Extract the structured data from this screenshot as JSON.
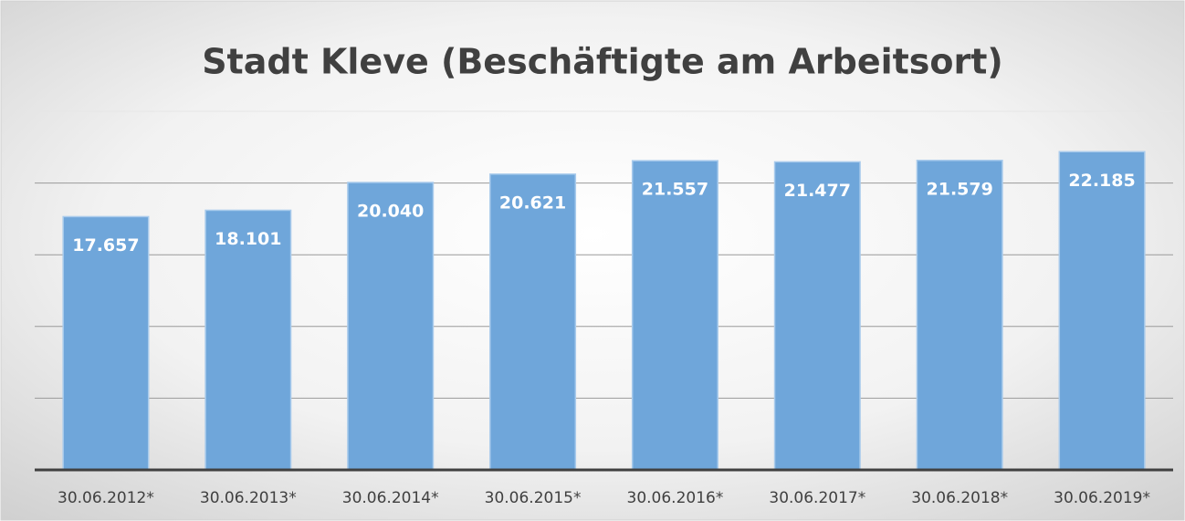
{
  "chart_data": {
    "type": "bar",
    "title": "Stadt Kleve (Beschäftigte am Arbeitsort)",
    "categories": [
      "30.06.2012*",
      "30.06.2013*",
      "30.06.2014*",
      "30.06.2015*",
      "30.06.2016*",
      "30.06.2017*",
      "30.06.2018*",
      "30.06.2019*"
    ],
    "values": [
      17657,
      18101,
      20040,
      20621,
      21557,
      21477,
      21579,
      22185
    ],
    "value_labels": [
      "17.657",
      "18.101",
      "20.040",
      "20.621",
      "21.557",
      "21.477",
      "21.579",
      "22.185"
    ],
    "color": "#6fa6da",
    "ylim": [
      0,
      25000
    ],
    "yticks": [
      0,
      5000,
      10000,
      15000,
      20000,
      25000
    ],
    "grid": true
  }
}
